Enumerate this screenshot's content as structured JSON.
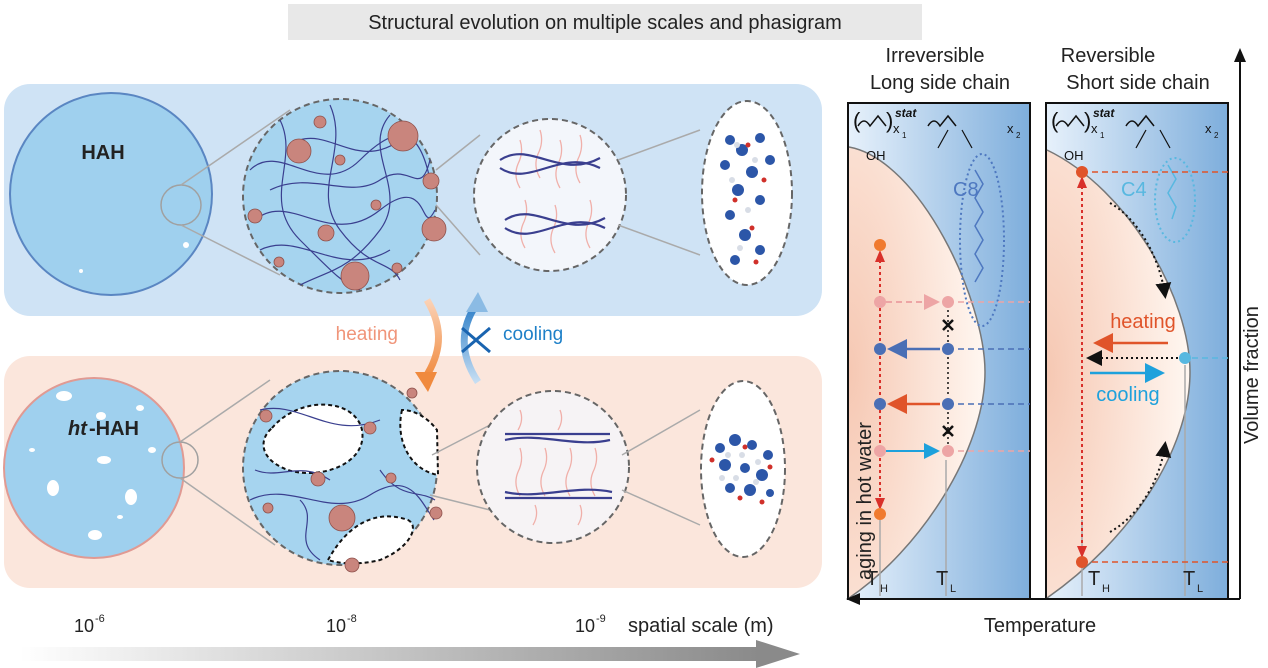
{
  "title": "Structural evolution on multiple scales and phasigram",
  "materials": {
    "hah": "HAH",
    "ht_hah_prefix": "ht",
    "ht_hah_suffix": "-HAH"
  },
  "transitions": {
    "heating": "heating",
    "cooling": "cooling"
  },
  "scale_axis": {
    "ticks": [
      {
        "base": "10",
        "exp": "-6"
      },
      {
        "base": "10",
        "exp": "-8"
      },
      {
        "base": "10",
        "exp": "-9"
      }
    ],
    "label": "spatial scale (m)"
  },
  "phasigram": {
    "x_axis_label": "Temperature",
    "y_axis_label": "Volume fraction",
    "aging_label": "aging in hot water",
    "panels": [
      {
        "header_line1": "Irreversible",
        "header_line2": "Long side chain",
        "chain_label": "C8",
        "temp_labels": [
          {
            "T": "T",
            "sub": "H"
          },
          {
            "T": "T",
            "sub": "L"
          }
        ],
        "formula": {
          "stat": "stat",
          "x1": "x",
          "x1_sub": "1",
          "x2": "x",
          "x2_sub": "2",
          "oh": "OH"
        }
      },
      {
        "header_line1": "Reversible",
        "header_line2": "Short side chain",
        "chain_label": "C4",
        "temp_labels": [
          {
            "T": "T",
            "sub": "H"
          },
          {
            "T": "T",
            "sub": "L"
          }
        ],
        "formula": {
          "stat": "stat",
          "x1": "x",
          "x1_sub": "1",
          "x2": "x",
          "x2_sub": "2",
          "oh": "OH"
        },
        "arrow_labels": {
          "heating": "heating",
          "cooling": "cooling"
        }
      }
    ]
  },
  "colors": {
    "blue_panel": "#cfe3f5",
    "pink_panel": "#fbe6dc",
    "circle_fill": "#9fd0ee",
    "chain_blue": "#3a3f8f",
    "cluster_pink": "#c9857d",
    "heating_orange": "#e0542a",
    "cooling_blue": "#1ea1dc",
    "dot_blue": "#4a6fb5",
    "dot_pink": "#eda5a5",
    "red_dash": "#d9302a"
  }
}
